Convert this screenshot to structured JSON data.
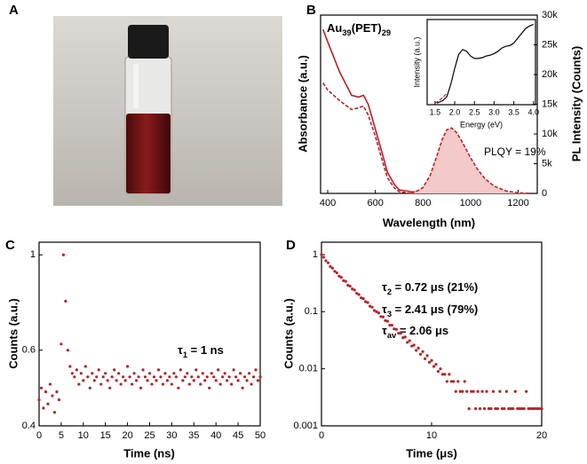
{
  "photo": {
    "panel": "A"
  },
  "chart_data": [
    {
      "type": "line",
      "panel": "B",
      "annotations": [
        [
          "Au",
          "39",
          "(PET)",
          "29"
        ],
        [
          "PLQY = 19%"
        ]
      ],
      "xlabel": "Wavelength (nm)",
      "ylabel": "Absorbance (a.u.)",
      "y2label": "PL Intensity (Counts)",
      "xlim": [
        370,
        1280
      ],
      "xticks": [
        400,
        600,
        800,
        1000,
        1200
      ],
      "ylim": [
        0,
        1
      ],
      "y2lim": [
        0,
        30000
      ],
      "y2ticks": [
        0,
        {
          "value": 5000,
          "label": "5k"
        },
        {
          "value": 10000,
          "label": "10k"
        },
        {
          "value": 15000,
          "label": "15k"
        },
        {
          "value": 20000,
          "label": "20k"
        },
        {
          "value": 25000,
          "label": "25k"
        },
        {
          "value": 30000,
          "label": "30k"
        }
      ],
      "series": [
        {
          "color": "#b82226",
          "style": "solid",
          "x": [
            380,
            400,
            450,
            500,
            530,
            550,
            570,
            600,
            630,
            650,
            680,
            700,
            750,
            800
          ],
          "values": [
            0.92,
            0.85,
            0.68,
            0.55,
            0.54,
            0.55,
            0.5,
            0.36,
            0.22,
            0.12,
            0.05,
            0.02,
            0.01,
            0.005
          ]
        },
        {
          "color": "#b82226",
          "style": "dashed",
          "x": [
            380,
            400,
            450,
            500,
            530,
            550,
            570,
            600,
            630,
            650,
            680,
            700,
            750,
            800
          ],
          "values": [
            0.62,
            0.58,
            0.52,
            0.47,
            0.48,
            0.49,
            0.44,
            0.32,
            0.18,
            0.09,
            0.03,
            0.01,
            0,
            0
          ]
        },
        {
          "color": "#b82226",
          "style": "dashed",
          "fill": "#f4c9c9",
          "axis": "y2",
          "x": [
            750,
            780,
            800,
            830,
            860,
            880,
            900,
            920,
            940,
            960,
            980,
            1000,
            1030,
            1060,
            1100,
            1150,
            1200,
            1250
          ],
          "values": [
            0,
            500,
            1000,
            3000,
            6500,
            9000,
            10700,
            11000,
            10300,
            9000,
            7500,
            6000,
            4000,
            2500,
            1200,
            400,
            100,
            0
          ]
        }
      ]
    },
    {
      "type": "line",
      "xlabel": "Energy (eV)",
      "ylabel": "Intensity (a.u.)",
      "xlim": [
        1.3,
        4.05
      ],
      "xticks": [
        1.5,
        {
          "value": 2,
          "label": "2.0"
        },
        2.5,
        {
          "value": 3,
          "label": "3.0"
        },
        3.5,
        {
          "value": 4,
          "label": "4.0"
        }
      ],
      "ylim": [
        0,
        1.05
      ],
      "series": [
        {
          "color": "#000000",
          "style": "solid",
          "x": [
            1.55,
            1.7,
            1.8,
            1.9,
            2.0,
            2.1,
            2.2,
            2.3,
            2.4,
            2.5,
            2.6,
            2.7,
            2.8,
            2.9,
            3.0,
            3.1,
            3.2,
            3.3,
            3.4,
            3.5,
            3.6,
            3.7,
            3.8,
            3.9,
            4.0
          ],
          "values": [
            0.02,
            0.05,
            0.1,
            0.25,
            0.45,
            0.62,
            0.68,
            0.66,
            0.6,
            0.57,
            0.57,
            0.58,
            0.6,
            0.61,
            0.63,
            0.66,
            0.7,
            0.72,
            0.73,
            0.76,
            0.82,
            0.88,
            0.94,
            0.97,
            0.99
          ]
        },
        {
          "color": "#b82226",
          "style": "dashed",
          "x": [
            1.5,
            1.6,
            1.7,
            1.8
          ],
          "values": [
            0.02,
            0.05,
            0.09,
            0.14
          ]
        }
      ]
    },
    {
      "type": "scatter",
      "panel": "C",
      "annotations": [
        [
          "τ",
          "1",
          " = 1 ns"
        ]
      ],
      "color": "#b82226",
      "xlabel": "Time (ns)",
      "ylabel": "Counts (a.u.)",
      "yscale": "log",
      "xlim": [
        0,
        50
      ],
      "xticks": [
        0,
        5,
        10,
        15,
        20,
        25,
        30,
        35,
        40,
        45,
        50
      ],
      "ylim": [
        0.4,
        1.07
      ],
      "yticks": [
        0.4,
        0.6,
        1
      ],
      "x": [
        0,
        0.5,
        1,
        1.5,
        2,
        2.5,
        3,
        3.5,
        4,
        4.5,
        5,
        5.5,
        6,
        6.5,
        7,
        7.5,
        8,
        8.5,
        9,
        9.5,
        10,
        10.5,
        11,
        11.5,
        12,
        12.5,
        13,
        13.5,
        14,
        14.5,
        15,
        15.5,
        16,
        16.5,
        17,
        17.5,
        18,
        18.5,
        19,
        19.5,
        20,
        20.5,
        21,
        21.5,
        22,
        22.5,
        23,
        23.5,
        24,
        24.5,
        25,
        25.5,
        26,
        26.5,
        27,
        27.5,
        28,
        28.5,
        29,
        29.5,
        30,
        30.5,
        31,
        31.5,
        32,
        32.5,
        33,
        33.5,
        34,
        34.5,
        35,
        35.5,
        36,
        36.5,
        37,
        37.5,
        38,
        38.5,
        39,
        39.5,
        40,
        40.5,
        41,
        41.5,
        42,
        42.5,
        43,
        43.5,
        44,
        44.5,
        45,
        45.5,
        46,
        46.5,
        47,
        47.5,
        48,
        48.5,
        49,
        49.5,
        50
      ],
      "values": [
        0.46,
        0.49,
        0.44,
        0.48,
        0.45,
        0.5,
        0.47,
        0.43,
        0.48,
        0.46,
        0.62,
        1.0,
        0.78,
        0.6,
        0.55,
        0.53,
        0.52,
        0.54,
        0.5,
        0.53,
        0.51,
        0.55,
        0.52,
        0.49,
        0.53,
        0.51,
        0.52,
        0.54,
        0.5,
        0.52,
        0.53,
        0.51,
        0.49,
        0.52,
        0.54,
        0.51,
        0.53,
        0.5,
        0.52,
        0.51,
        0.55,
        0.52,
        0.5,
        0.53,
        0.51,
        0.52,
        0.49,
        0.54,
        0.52,
        0.51,
        0.53,
        0.5,
        0.52,
        0.51,
        0.54,
        0.52,
        0.5,
        0.53,
        0.51,
        0.52,
        0.5,
        0.53,
        0.52,
        0.49,
        0.54,
        0.51,
        0.52,
        0.53,
        0.5,
        0.52,
        0.51,
        0.54,
        0.52,
        0.5,
        0.53,
        0.51,
        0.52,
        0.49,
        0.53,
        0.52,
        0.51,
        0.54,
        0.5,
        0.52,
        0.53,
        0.51,
        0.52,
        0.5,
        0.54,
        0.52,
        0.51,
        0.53,
        0.49,
        0.52,
        0.51,
        0.53,
        0.5,
        0.52,
        0.54,
        0.51,
        0.52
      ]
    },
    {
      "type": "scatter",
      "panel": "D",
      "annotations": [
        [
          "τ",
          "2",
          " = 0.72 μs (21%)"
        ],
        [
          "τ",
          "3",
          " = 2.41 μs (79%)"
        ],
        [
          "τ",
          "av",
          " = 2.06 μs"
        ]
      ],
      "color": "#b82226",
      "xlabel": "Time (μs)",
      "ylabel": "Counts (a.u.)",
      "yscale": "log",
      "xlim": [
        0,
        20
      ],
      "xticks": [
        0,
        10,
        20
      ],
      "ylim": [
        0.001,
        1.65
      ],
      "yticks": [
        0.001,
        0.01,
        0.1,
        1
      ],
      "x": [
        0,
        0.2,
        0.4,
        0.6,
        0.8,
        1,
        1.2,
        1.4,
        1.6,
        1.8,
        2,
        2.2,
        2.4,
        2.6,
        2.8,
        3,
        3.2,
        3.4,
        3.6,
        3.8,
        4,
        4.2,
        4.4,
        4.6,
        4.8,
        5,
        5.2,
        5.4,
        5.6,
        5.8,
        6,
        6.2,
        6.4,
        6.6,
        6.8,
        7,
        7.2,
        7.4,
        7.6,
        7.8,
        8,
        8.2,
        8.4,
        8.6,
        8.8,
        9,
        9.2,
        9.4,
        9.6,
        9.8,
        10,
        10.2,
        10.4,
        10.6,
        10.8,
        11,
        11.2,
        11.4,
        11.6,
        11.8,
        12,
        12.2,
        12.4,
        12.6,
        12.8,
        13,
        13.2,
        13.4,
        13.6,
        13.8,
        14,
        14.2,
        14.4,
        14.6,
        14.8,
        15,
        15.2,
        15.4,
        15.6,
        15.8,
        16,
        16.2,
        16.4,
        16.6,
        16.8,
        17,
        17.2,
        17.4,
        17.6,
        17.8,
        18,
        18.2,
        18.4,
        18.6,
        18.8,
        19,
        19.2,
        19.4,
        19.6,
        19.8,
        20
      ],
      "values": [
        1.0,
        0.9,
        0.78,
        0.72,
        0.62,
        0.58,
        0.51,
        0.48,
        0.42,
        0.4,
        0.35,
        0.34,
        0.29,
        0.28,
        0.25,
        0.24,
        0.21,
        0.2,
        0.175,
        0.17,
        0.15,
        0.145,
        0.125,
        0.12,
        0.105,
        0.1,
        0.095,
        0.082,
        0.081,
        0.07,
        0.068,
        0.058,
        0.058,
        0.05,
        0.049,
        0.042,
        0.042,
        0.035,
        0.036,
        0.029,
        0.031,
        0.025,
        0.026,
        0.021,
        0.023,
        0.018,
        0.02,
        0.015,
        0.017,
        0.013,
        0.014,
        0.011,
        0.012,
        0.009,
        0.01,
        0.008,
        0.008,
        0.006,
        0.008,
        0.006,
        0.006,
        0.004,
        0.006,
        0.004,
        0.004,
        0.006,
        0.004,
        0.002,
        0.004,
        0.004,
        0.002,
        0.004,
        0.002,
        0.004,
        0.002,
        0.004,
        0.002,
        0.002,
        0.004,
        0.002,
        0.002,
        0.004,
        0.002,
        0.002,
        0.004,
        0.002,
        0.002,
        0.002,
        0.004,
        0.002,
        0.002,
        0.002,
        0.002,
        0.004,
        0.002,
        0.002,
        0.002,
        0.002,
        0.002,
        0.002,
        0.002
      ]
    }
  ]
}
